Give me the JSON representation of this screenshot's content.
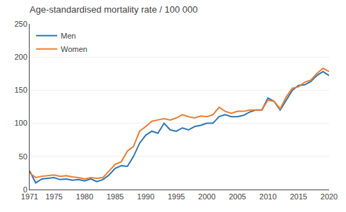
{
  "chart_data": {
    "type": "line",
    "title": "Age-standardised mortality rate / 100 000",
    "x": [
      1971,
      1972,
      1973,
      1974,
      1975,
      1976,
      1977,
      1978,
      1979,
      1980,
      1981,
      1982,
      1983,
      1984,
      1985,
      1986,
      1987,
      1988,
      1989,
      1990,
      1991,
      1992,
      1993,
      1994,
      1995,
      1996,
      1997,
      1998,
      1999,
      2000,
      2001,
      2002,
      2003,
      2004,
      2005,
      2006,
      2007,
      2008,
      2009,
      2010,
      2011,
      2012,
      2013,
      2014,
      2015,
      2016,
      2017,
      2018,
      2019,
      2020
    ],
    "series": [
      {
        "name": "Men",
        "color": "#2E75B6",
        "values": [
          28,
          10,
          16,
          17,
          18,
          15,
          16,
          14,
          15,
          13,
          16,
          12,
          15,
          22,
          32,
          36,
          35,
          50,
          70,
          82,
          88,
          85,
          100,
          90,
          88,
          93,
          90,
          95,
          97,
          100,
          100,
          110,
          113,
          110,
          110,
          112,
          117,
          120,
          120,
          138,
          133,
          120,
          135,
          150,
          157,
          158,
          163,
          172,
          178,
          172
        ]
      },
      {
        "name": "Women",
        "color": "#ED7D31",
        "values": [
          25,
          18,
          20,
          21,
          22,
          20,
          21,
          19,
          18,
          16,
          18,
          17,
          18,
          28,
          38,
          42,
          58,
          65,
          88,
          95,
          103,
          105,
          107,
          105,
          108,
          113,
          110,
          108,
          111,
          110,
          113,
          124,
          118,
          115,
          118,
          118,
          120,
          120,
          120,
          135,
          133,
          122,
          140,
          153,
          155,
          162,
          165,
          175,
          183,
          178
        ]
      }
    ],
    "xlim": [
      1971,
      2020
    ],
    "xticks": [
      1971,
      1975,
      1980,
      1985,
      1990,
      1995,
      2000,
      2005,
      2010,
      2015,
      2020
    ],
    "ylim": [
      0,
      250
    ],
    "yticks": [
      0,
      50,
      100,
      150,
      200,
      250
    ],
    "grid": "y",
    "legend": "upper left"
  }
}
